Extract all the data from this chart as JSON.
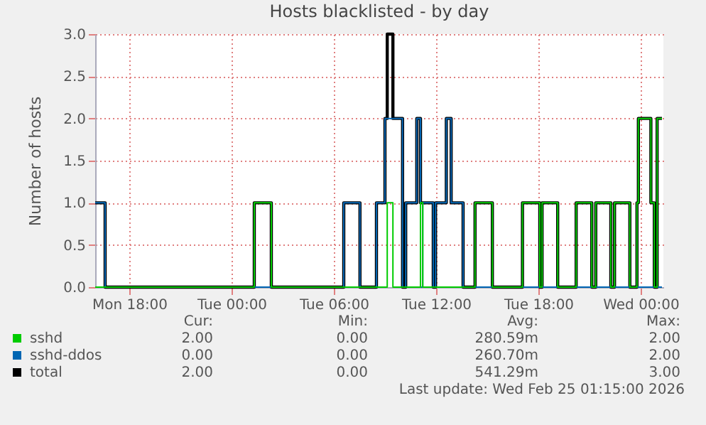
{
  "chart_data": {
    "type": "step",
    "title": "Hosts blacklisted - by day",
    "ylabel": "Number of hosts",
    "x": [
      "2026-02-23T16:00",
      "2026-02-23T16:35",
      "2026-02-24T01:20",
      "2026-02-24T02:20",
      "2026-02-24T06:35",
      "2026-02-24T07:32",
      "2026-02-24T08:30",
      "2026-02-24T09:00",
      "2026-02-24T09:08",
      "2026-02-24T09:28",
      "2026-02-24T10:02",
      "2026-02-24T10:13",
      "2026-02-24T10:52",
      "2026-02-24T11:05",
      "2026-02-24T11:13",
      "2026-02-24T11:50",
      "2026-02-24T11:58",
      "2026-02-24T12:36",
      "2026-02-24T12:53",
      "2026-02-24T13:35",
      "2026-02-24T14:17",
      "2026-02-24T15:18",
      "2026-02-24T17:04",
      "2026-02-24T18:05",
      "2026-02-24T18:13",
      "2026-02-24T19:08",
      "2026-02-24T20:13",
      "2026-02-24T21:08",
      "2026-02-24T21:22",
      "2026-02-24T22:15",
      "2026-02-24T22:28",
      "2026-02-24T23:22",
      "2026-02-24T23:47",
      "2026-02-24T23:52",
      "2026-02-25T00:36",
      "2026-02-25T00:48",
      "2026-02-25T00:58",
      "2026-02-25T01:15"
    ],
    "series": [
      {
        "name": "sshd",
        "color": "#00cc00",
        "values": [
          0,
          0,
          1,
          0,
          0,
          0,
          0,
          0,
          1,
          0,
          0,
          0,
          0,
          1,
          0,
          0,
          0,
          0,
          0,
          0,
          1,
          0,
          1,
          0,
          1,
          0,
          1,
          0,
          1,
          0,
          1,
          0,
          1,
          2,
          1,
          0,
          2,
          2
        ]
      },
      {
        "name": "sshd-ddos",
        "color": "#0066b3",
        "values": [
          1,
          0,
          0,
          0,
          1,
          0,
          1,
          2,
          2,
          2,
          0,
          1,
          2,
          0,
          1,
          0,
          1,
          2,
          1,
          0,
          0,
          0,
          0,
          0,
          0,
          0,
          0,
          0,
          0,
          0,
          0,
          0,
          0,
          0,
          0,
          0,
          0,
          0
        ]
      },
      {
        "name": "total",
        "color": "#000000",
        "values": [
          1,
          0,
          1,
          0,
          1,
          0,
          1,
          2,
          3,
          2,
          0,
          1,
          2,
          1,
          1,
          0,
          1,
          2,
          1,
          0,
          1,
          0,
          1,
          0,
          1,
          0,
          1,
          0,
          1,
          0,
          1,
          0,
          1,
          2,
          1,
          0,
          2,
          2
        ]
      }
    ],
    "xlim": [
      "2026-02-23T16:00",
      "2026-02-25T01:20"
    ],
    "xticks": [
      {
        "value": "2026-02-23T18:00",
        "label": "Mon 18:00"
      },
      {
        "value": "2026-02-24T00:00",
        "label": "Tue 00:00"
      },
      {
        "value": "2026-02-24T06:00",
        "label": "Tue 06:00"
      },
      {
        "value": "2026-02-24T12:00",
        "label": "Tue 12:00"
      },
      {
        "value": "2026-02-24T18:00",
        "label": "Tue 18:00"
      },
      {
        "value": "2026-02-25T00:00",
        "label": "Wed 00:00"
      }
    ],
    "ylim": [
      0,
      3
    ],
    "yticks": [
      {
        "value": 0,
        "label": "0.0"
      },
      {
        "value": 0.5,
        "label": "0.5"
      },
      {
        "value": 1,
        "label": "1.0"
      },
      {
        "value": 1.5,
        "label": "1.5"
      },
      {
        "value": 2,
        "label": "2.0"
      },
      {
        "value": 2.5,
        "label": "2.5"
      },
      {
        "value": 3,
        "label": "3.0"
      }
    ],
    "grid": true,
    "legend": "bottom left",
    "line_style": "solid",
    "marker": "none",
    "annotations": [
      "Cur:",
      "Min:",
      "Avg:",
      "Max:",
      "2.00",
      "0.00",
      "280.59m",
      "2.00",
      "0.00",
      "0.00",
      "260.70m",
      "2.00",
      "2.00",
      "0.00",
      "541.29m",
      "3.00",
      "Last update: Wed Feb 25 01:15:00 2026"
    ]
  }
}
